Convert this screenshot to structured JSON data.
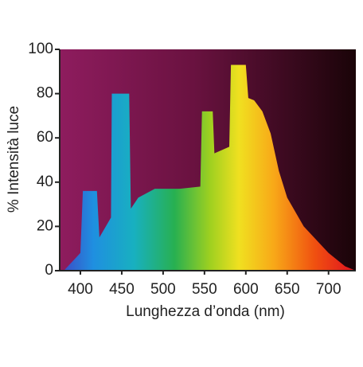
{
  "chart_data": {
    "type": "area",
    "xlabel": "Lunghezza d’onda (nm)",
    "ylabel": "% Intensità luce",
    "x": [
      380,
      400,
      403,
      420,
      423,
      437,
      438,
      459,
      461,
      470,
      490,
      520,
      545,
      547,
      560,
      562,
      580,
      582,
      600,
      603,
      610,
      620,
      630,
      640,
      650,
      670,
      700,
      720,
      733
    ],
    "values": [
      0,
      8,
      36,
      36,
      15,
      24,
      80,
      80,
      28,
      33,
      37,
      37,
      38,
      72,
      72,
      53,
      56,
      93,
      93,
      78,
      77,
      72,
      62,
      45,
      33,
      20,
      8,
      2,
      0
    ],
    "xlim": [
      375,
      733
    ],
    "ylim": [
      0,
      100
    ],
    "xticks": [
      400,
      450,
      500,
      550,
      600,
      650,
      700
    ],
    "yticks": [
      0,
      20,
      40,
      60,
      80,
      100
    ]
  }
}
